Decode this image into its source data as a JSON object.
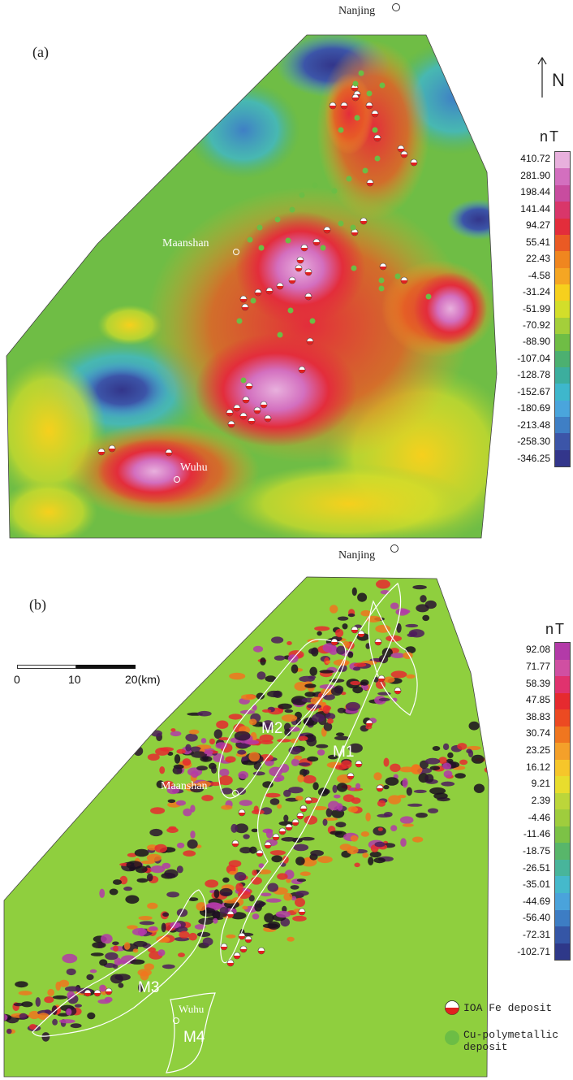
{
  "panel_a": {
    "label": "(a)",
    "north_label": "N",
    "cities": {
      "nanjing": "Nanjing",
      "maanshan": "Maanshan",
      "wuhu": "Wuhu"
    },
    "colorbar": {
      "unit": "nT",
      "ticks": [
        "410.72",
        "281.90",
        "198.44",
        "141.44",
        "94.27",
        "55.41",
        "22.43",
        "-4.58",
        "-31.24",
        "-51.99",
        "-70.92",
        "-88.90",
        "-107.04",
        "-128.78",
        "-152.67",
        "-180.69",
        "-213.48",
        "-258.30",
        "-346.25"
      ],
      "colors": [
        "#e8b0dd",
        "#d36fbf",
        "#c84c9f",
        "#d9366a",
        "#e32d3b",
        "#ea5a24",
        "#f0861f",
        "#f5a623",
        "#f6d01d",
        "#d3de2a",
        "#a4cf3a",
        "#6fbd45",
        "#4cb070",
        "#3cae9e",
        "#3eb7cc",
        "#4aa5dc",
        "#3f7fc5",
        "#3c55a8",
        "#33368b"
      ]
    }
  },
  "panel_b": {
    "label": "(b)",
    "cities": {
      "nanjing": "Nanjing",
      "maanshan": "Maanshan",
      "wuhu": "Wuhu"
    },
    "zones": [
      "M1",
      "M2",
      "M3",
      "M4"
    ],
    "scale_bar": {
      "labels": [
        "0",
        "10",
        "20(km)"
      ]
    },
    "colorbar": {
      "unit": "nT",
      "ticks": [
        "92.08",
        "71.77",
        "58.39",
        "47.85",
        "38.83",
        "30.74",
        "23.25",
        "16.12",
        "9.21",
        "2.39",
        "-4.46",
        "-11.46",
        "-18.75",
        "-26.51",
        "-35.01",
        "-44.69",
        "-56.40",
        "-72.31",
        "-102.71"
      ],
      "colors": [
        "#b33aa8",
        "#d04fa2",
        "#e0326e",
        "#e62a2f",
        "#ec4a22",
        "#f0761f",
        "#f4a02a",
        "#f6c62a",
        "#e8dd2d",
        "#bcd63a",
        "#9fcd3d",
        "#7cc246",
        "#58b66a",
        "#48b59b",
        "#45b9cb",
        "#4aa3db",
        "#3d7dc4",
        "#3556a6",
        "#2e3889"
      ]
    }
  },
  "legend": {
    "fe_label": "IOA Fe deposit",
    "cu_label_line1": "Cu-polymetallic",
    "cu_label_line2": "deposit",
    "fe_color": "#e0201f",
    "cu_color": "#6cbd45"
  }
}
